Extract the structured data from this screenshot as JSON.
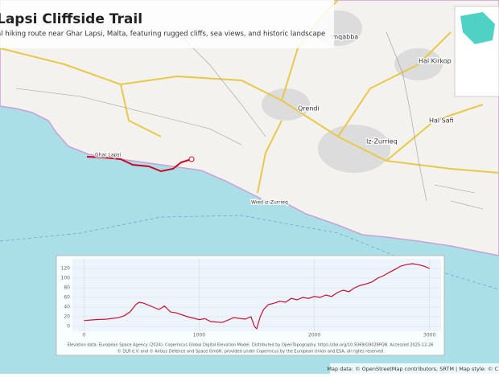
{
  "header": {
    "title": "Lapsi Cliffside Trail",
    "subtitle": "al hiking route near Ghar Lapsi, Malta, featuring rugged cliffs, sea views, and historic landscape"
  },
  "places": [
    "Imqabba",
    "Hal Kirkop",
    "Qrendi",
    "Iz-Zurrieq",
    "Hal Safi",
    "Wied iz-Zurrieq",
    "Ghar Lapsi"
  ],
  "chart_data": {
    "type": "line",
    "x": [
      0,
      100,
      200,
      300,
      350,
      400,
      450,
      480,
      520,
      600,
      650,
      700,
      750,
      800,
      900,
      1000,
      1050,
      1100,
      1200,
      1300,
      1400,
      1450,
      1480,
      1500,
      1530,
      1560,
      1600,
      1650,
      1700,
      1750,
      1800,
      1850,
      1900,
      1950,
      2000,
      2050,
      2100,
      2150,
      2200,
      2250,
      2300,
      2350,
      2400,
      2450,
      2500,
      2550,
      2600,
      2650,
      2700,
      2750,
      2800,
      2850,
      2900,
      2950,
      3000
    ],
    "series": [
      {
        "color": "#c8102e",
        "values": [
          12,
          14,
          15,
          18,
          22,
          30,
          45,
          50,
          48,
          40,
          35,
          42,
          30,
          28,
          20,
          14,
          16,
          10,
          8,
          18,
          15,
          20,
          0,
          -5,
          20,
          35,
          45,
          48,
          52,
          50,
          58,
          55,
          60,
          58,
          62,
          60,
          65,
          62,
          70,
          75,
          72,
          80,
          85,
          88,
          92,
          100,
          105,
          112,
          118,
          125,
          128,
          130,
          128,
          125,
          120
        ]
      }
    ],
    "xlim": [
      -100,
      3100
    ],
    "ylim": [
      -10,
      140
    ],
    "xticks": [
      0,
      1000,
      2000,
      3000
    ],
    "yticks": [
      0,
      20,
      40,
      60,
      80,
      100,
      120
    ],
    "grid": true
  },
  "chart_caption": [
    "Elevation data: European Space Agency (2024). Copernicus Global Digital Elevation Model. Distributed by OpenTopography. https://doi.org/10.5069/G9028PQB. Accessed 2025-12-26",
    "© DLR e.V. and © Airbus Defence and Space GmbH, provided under Copernicus by the European Union and ESA, all rights reserved"
  ],
  "attribution": "Map data: © OpenStreetMap contributors, SRTM | Map style: © C"
}
